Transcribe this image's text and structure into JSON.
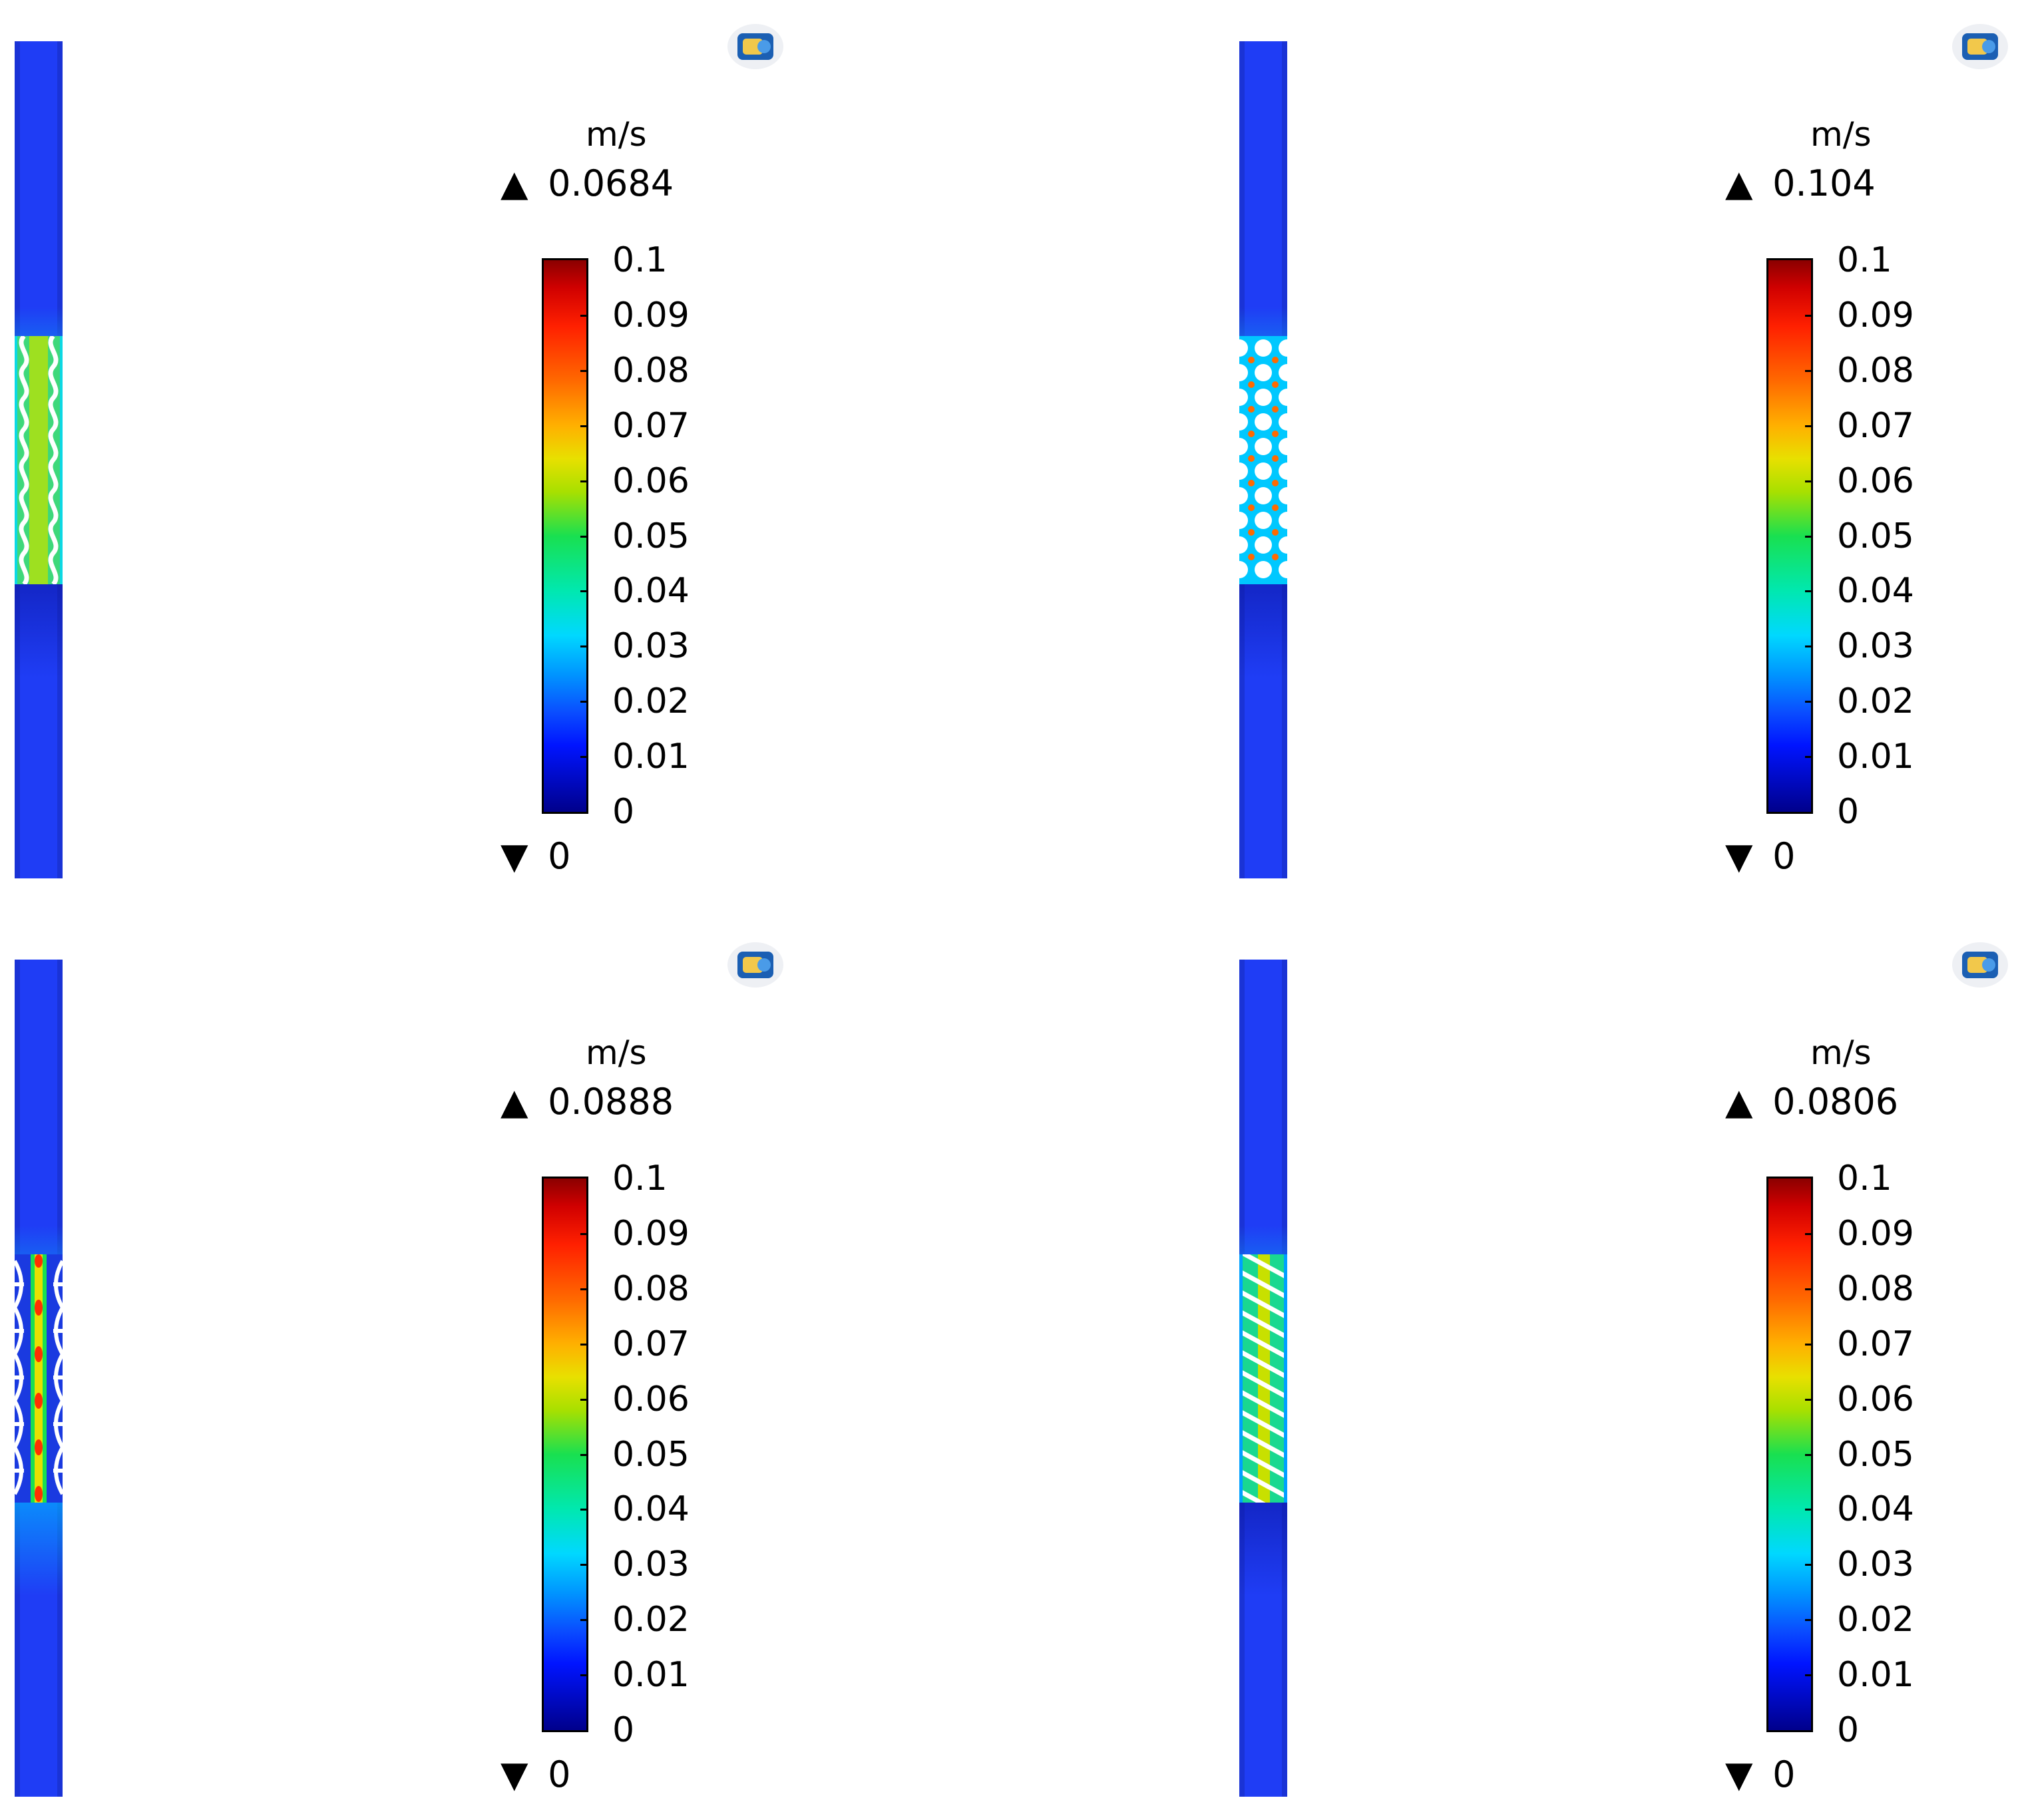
{
  "chart_data": [
    {
      "type": "heatmap",
      "colorbar": {
        "unit": "m/s",
        "max_marker": "0.0684",
        "min_marker": "0",
        "ticks": [
          "0.1",
          "0.09",
          "0.08",
          "0.07",
          "0.06",
          "0.05",
          "0.04",
          "0.03",
          "0.02",
          "0.01",
          "0"
        ],
        "range": [
          0,
          0.1
        ]
      },
      "pattern": "wavy"
    },
    {
      "type": "heatmap",
      "colorbar": {
        "unit": "m/s",
        "max_marker": "0.104",
        "min_marker": "0",
        "ticks": [
          "0.1",
          "0.09",
          "0.08",
          "0.07",
          "0.06",
          "0.05",
          "0.04",
          "0.03",
          "0.02",
          "0.01",
          "0"
        ],
        "range": [
          0,
          0.1
        ]
      },
      "pattern": "circles"
    },
    {
      "type": "heatmap",
      "colorbar": {
        "unit": "m/s",
        "max_marker": "0.0888",
        "min_marker": "0",
        "ticks": [
          "0.1",
          "0.09",
          "0.08",
          "0.07",
          "0.06",
          "0.05",
          "0.04",
          "0.03",
          "0.02",
          "0.01",
          "0"
        ],
        "range": [
          0,
          0.1
        ]
      },
      "pattern": "half-circles"
    },
    {
      "type": "heatmap",
      "colorbar": {
        "unit": "m/s",
        "max_marker": "0.0806",
        "min_marker": "0",
        "ticks": [
          "0.1",
          "0.09",
          "0.08",
          "0.07",
          "0.06",
          "0.05",
          "0.04",
          "0.03",
          "0.02",
          "0.01",
          "0"
        ],
        "range": [
          0,
          0.1
        ]
      },
      "pattern": "diagonal-stripes"
    }
  ],
  "colors": {
    "channel": "#1f3df5",
    "colormap": [
      "#00008b",
      "#0014ff",
      "#0096ff",
      "#00d8ff",
      "#19e050",
      "#e8e000",
      "#ffb000",
      "#ff2000",
      "#8b0000"
    ]
  },
  "icons": {
    "app_logo": "comsol-logo-icon",
    "max_marker": "up-triangle-icon",
    "min_marker": "down-triangle-icon"
  }
}
